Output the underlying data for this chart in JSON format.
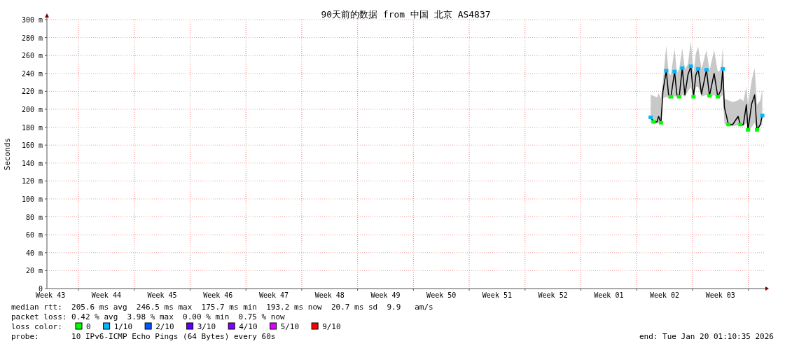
{
  "chart_data": {
    "type": "line",
    "title": "90天前的数据 from 中国 北京 AS4837",
    "ylabel": "Seconds",
    "xlim": [
      "2025-10-22T01:10",
      "2026-01-20T01:10"
    ],
    "xticks": [
      {
        "value": "2025-10-22T12:00",
        "label": "Week 43"
      },
      {
        "value": "2025-10-26T00:00",
        "label": null
      },
      {
        "value": "2025-10-29T12:00",
        "label": "Week 44"
      },
      {
        "value": "2025-11-02T00:00",
        "label": null
      },
      {
        "value": "2025-11-05T12:00",
        "label": "Week 45"
      },
      {
        "value": "2025-11-09T00:00",
        "label": null
      },
      {
        "value": "2025-11-12T12:00",
        "label": "Week 46"
      },
      {
        "value": "2025-11-16T00:00",
        "label": null
      },
      {
        "value": "2025-11-19T12:00",
        "label": "Week 47"
      },
      {
        "value": "2025-11-23T00:00",
        "label": null
      },
      {
        "value": "2025-11-26T12:00",
        "label": "Week 48"
      },
      {
        "value": "2025-11-30T00:00",
        "label": null
      },
      {
        "value": "2025-12-03T12:00",
        "label": "Week 49"
      },
      {
        "value": "2025-12-07T00:00",
        "label": null
      },
      {
        "value": "2025-12-10T12:00",
        "label": "Week 50"
      },
      {
        "value": "2025-12-14T00:00",
        "label": null
      },
      {
        "value": "2025-12-17T12:00",
        "label": "Week 51"
      },
      {
        "value": "2025-12-21T00:00",
        "label": null
      },
      {
        "value": "2025-12-24T12:00",
        "label": "Week 52"
      },
      {
        "value": "2025-12-28T00:00",
        "label": null
      },
      {
        "value": "2025-12-31T12:00",
        "label": "Week 01"
      },
      {
        "value": "2026-01-04T00:00",
        "label": null
      },
      {
        "value": "2026-01-07T12:00",
        "label": "Week 02"
      },
      {
        "value": "2026-01-11T00:00",
        "label": null
      },
      {
        "value": "2026-01-14T12:00",
        "label": "Week 03"
      },
      {
        "value": "2026-01-18T00:00",
        "label": null
      }
    ],
    "ylim": [
      0,
      300
    ],
    "yticks": [
      0,
      {
        "value": 20,
        "label": "20 m"
      },
      {
        "value": 40,
        "label": "40 m"
      },
      {
        "value": 60,
        "label": "60 m"
      },
      {
        "value": 80,
        "label": "80 m"
      },
      {
        "value": 100,
        "label": "100 m"
      },
      {
        "value": 120,
        "label": "120 m"
      },
      {
        "value": 140,
        "label": "140 m"
      },
      {
        "value": 160,
        "label": "160 m"
      },
      {
        "value": 180,
        "label": "180 m"
      },
      {
        "value": 200,
        "label": "200 m"
      },
      {
        "value": 220,
        "label": "220 m"
      },
      {
        "value": 240,
        "label": "240 m"
      },
      {
        "value": 260,
        "label": "260 m"
      },
      {
        "value": 280,
        "label": "280 m"
      },
      {
        "value": 300,
        "label": "300 m"
      }
    ],
    "grid": true,
    "legend": "bottom",
    "legend_title": "loss color:",
    "series": [
      {
        "color": "#000000",
        "x": [
          "2026-01-05T18:00",
          "2026-01-06T03:00",
          "2026-01-06T13:00",
          "2026-01-06T18:00",
          "2026-01-07T01:00",
          "2026-01-07T07:00",
          "2026-01-07T17:00",
          "2026-01-08T00:00",
          "2026-01-08T07:00",
          "2026-01-08T18:00",
          "2026-01-09T01:00",
          "2026-01-09T08:00",
          "2026-01-09T17:00",
          "2026-01-10T01:00",
          "2026-01-10T10:00",
          "2026-01-10T19:00",
          "2026-01-11T03:00",
          "2026-01-11T10:00",
          "2026-01-11T17:00",
          "2026-01-12T03:00",
          "2026-01-12T18:00",
          "2026-01-13T03:00",
          "2026-01-13T17:00",
          "2026-01-14T04:00",
          "2026-01-14T14:00",
          "2026-01-14T19:00",
          "2026-01-15T00:00",
          "2026-01-15T12:00",
          "2026-01-16T01:00",
          "2026-01-16T17:00",
          "2026-01-17T00:00",
          "2026-01-17T09:00",
          "2026-01-17T18:00",
          "2026-01-17T23:00",
          "2026-01-18T10:00",
          "2026-01-18T19:00",
          "2026-01-19T02:00",
          "2026-01-19T12:00",
          "2026-01-19T18:00"
        ],
        "values": [
          191,
          186,
          186,
          192,
          185,
          220,
          243,
          216,
          214,
          242,
          216,
          214,
          246,
          216,
          238,
          248,
          214,
          238,
          245,
          217,
          244,
          215,
          240,
          214,
          222,
          245,
          202,
          183,
          183,
          192,
          183,
          183,
          205,
          177,
          206,
          216,
          177,
          183,
          193
        ],
        "lower": [
          185,
          184,
          184,
          185,
          183,
          212,
          214,
          212,
          212,
          215,
          213,
          212,
          216,
          214,
          220,
          225,
          212,
          225,
          225,
          214,
          216,
          213,
          216,
          212,
          214,
          216,
          184,
          181,
          181,
          182,
          181,
          181,
          185,
          175,
          180,
          185,
          175,
          181,
          183
        ],
        "upper": [
          216,
          215,
          213,
          218,
          212,
          232,
          271,
          240,
          238,
          268,
          240,
          245,
          268,
          245,
          250,
          276,
          240,
          262,
          270,
          245,
          266,
          243,
          266,
          242,
          244,
          270,
          212,
          210,
          208,
          210,
          212,
          209,
          225,
          205,
          232,
          246,
          205,
          210,
          222
        ]
      },
      {
        "type": "scatter",
        "name": "0",
        "color": "#00ff00",
        "x": [
          "2026-01-06T03:00",
          "2026-01-07T01:00",
          "2026-01-08T07:00",
          "2026-01-09T08:00",
          "2026-01-11T03:00",
          "2026-01-13T03:00",
          "2026-01-14T04:00",
          "2026-01-15T12:00",
          "2026-01-17T00:00",
          "2026-01-17T23:00",
          "2026-01-19T02:00"
        ],
        "values": [
          186,
          185,
          214,
          214,
          214,
          215,
          214,
          183,
          183,
          177,
          177
        ]
      },
      {
        "type": "scatter",
        "name": "1/10",
        "color": "#00b8ff",
        "x": [
          "2026-01-05T18:00",
          "2026-01-07T17:00",
          "2026-01-08T18:00",
          "2026-01-09T17:00",
          "2026-01-10T19:00",
          "2026-01-11T17:00",
          "2026-01-12T18:00",
          "2026-01-14T19:00",
          "2026-01-19T18:00"
        ],
        "values": [
          191,
          243,
          242,
          246,
          248,
          245,
          244,
          245,
          193
        ]
      },
      {
        "type": "scatter",
        "name": "2/10",
        "color": "#0059ff"
      },
      {
        "type": "scatter",
        "name": "3/10",
        "color": "#5e00ff"
      },
      {
        "type": "scatter",
        "name": "4/10",
        "color": "#7e00ff"
      },
      {
        "type": "scatter",
        "name": "5/10",
        "color": "#dd00ff"
      },
      {
        "type": "scatter",
        "name": "9/10",
        "color": "#ff0000"
      }
    ],
    "annotations": [
      "median rtt:  205.6 ms avg  246.5 ms max  175.7 ms min  193.2 ms now  20.7 ms sd  9.9   am/s",
      "packet loss: 0.42 % avg  3.98 % max  0.00 % min  0.75 % now",
      "probe:       10 IPv6-ICMP Echo Pings (64 Bytes) every 60s",
      "end: Tue Jan 20 01:10:35 2026"
    ]
  }
}
